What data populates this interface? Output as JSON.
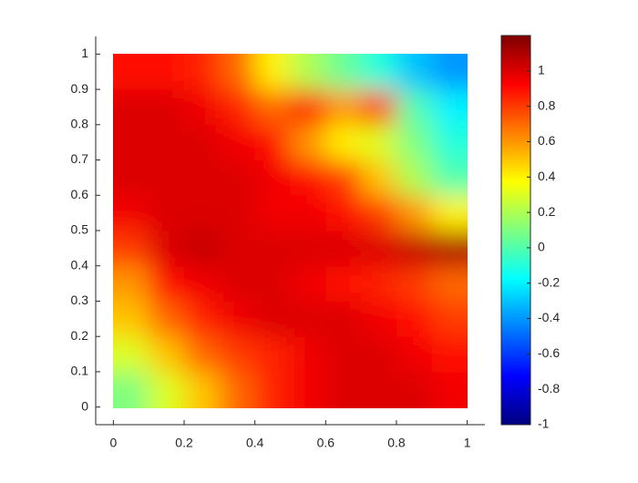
{
  "chart_data": {
    "type": "heatmap",
    "colormap": "jet",
    "x": [
      0.05,
      0.15,
      0.25,
      0.35,
      0.45,
      0.55,
      0.65,
      0.75,
      0.85,
      0.95
    ],
    "y": [
      0.05,
      0.15,
      0.25,
      0.35,
      0.45,
      0.55,
      0.65,
      0.75,
      0.85,
      0.95
    ],
    "z": [
      [
        0.1,
        0.3,
        0.5,
        0.7,
        0.85,
        0.95,
        1.0,
        1.0,
        1.0,
        0.95
      ],
      [
        0.3,
        0.5,
        0.7,
        0.8,
        0.85,
        0.95,
        1.0,
        1.0,
        0.95,
        0.9
      ],
      [
        0.5,
        0.7,
        0.85,
        0.95,
        1.0,
        1.0,
        1.0,
        0.95,
        0.9,
        0.8
      ],
      [
        0.6,
        0.9,
        0.95,
        1.0,
        1.0,
        0.95,
        0.9,
        0.85,
        0.8,
        0.7
      ],
      [
        0.8,
        1.0,
        1.05,
        1.0,
        1.0,
        1.0,
        1.0,
        1.0,
        1.05,
        1.1
      ],
      [
        0.95,
        1.0,
        1.0,
        1.0,
        0.95,
        0.95,
        0.9,
        0.8,
        0.6,
        0.4
      ],
      [
        1.0,
        1.0,
        1.0,
        1.0,
        0.95,
        0.9,
        0.8,
        0.5,
        0.2,
        0.0
      ],
      [
        1.0,
        1.0,
        1.0,
        0.95,
        0.9,
        0.6,
        0.4,
        0.3,
        0.1,
        -0.1
      ],
      [
        1.0,
        1.0,
        0.95,
        0.85,
        0.7,
        0.9,
        0.6,
        0.8,
        0.0,
        -0.2
      ],
      [
        0.9,
        0.9,
        0.85,
        0.7,
        0.4,
        0.2,
        0.05,
        -0.1,
        -0.3,
        -0.4
      ]
    ],
    "xlim": [
      -0.05,
      1.05
    ],
    "xticks": [
      0,
      0.2,
      0.4,
      0.6,
      0.8,
      1
    ],
    "ylim": [
      -0.05,
      1.05
    ],
    "yticks": [
      0,
      0.1,
      0.2,
      0.3,
      0.4,
      0.5,
      0.6,
      0.7,
      0.8,
      0.9,
      1
    ],
    "clim": [
      -1,
      1.2
    ],
    "cticks": [
      -1,
      -0.8,
      -0.6,
      -0.4,
      -0.2,
      0,
      0.2,
      0.4,
      0.6,
      0.8,
      1
    ]
  }
}
